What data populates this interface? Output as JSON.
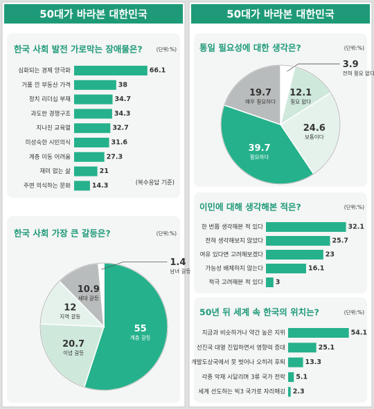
{
  "panels": [
    {
      "header": "50대가 바라본 대한민국"
    },
    {
      "header": "50대가 바라본 대한민국"
    }
  ],
  "chart_data": [
    {
      "type": "bar",
      "title": "한국 사회 발전 가로막는 장애물은?",
      "unit": "(단위:%)",
      "note": "(복수응답 기준)",
      "categories": [
        "심화되는 경제 양극화",
        "거품 낀 부동산 가격",
        "정치 리더십 부재",
        "과도한 경쟁구조",
        "지나친 교육열",
        "미성숙한 시민의식",
        "계층 이동 어려움",
        "재미 없는 삶",
        "주변 의식하는 문화"
      ],
      "values": [
        66.1,
        38,
        34.7,
        34.3,
        32.7,
        31.6,
        27.3,
        21,
        14.3
      ],
      "color": "#25b18b"
    },
    {
      "type": "pie",
      "title": "한국 사회 가장 큰 갈등은?",
      "unit": "(단위:%)",
      "categories": [
        "계층 갈등",
        "이념 갈등",
        "지역 갈등",
        "세대 갈등",
        "남녀 갈등"
      ],
      "values": [
        55,
        20.7,
        12,
        10.9,
        1.4
      ],
      "colors": [
        "#25b18b",
        "#cfe8dc",
        "#e4f2eb",
        "#b9bcbc",
        "#ffffff"
      ]
    },
    {
      "type": "pie",
      "title": "통일 필요성에 대한 생각은?",
      "unit": "(단위:%)",
      "categories": [
        "전혀 필요 없다",
        "필요 없다",
        "보통이다",
        "필요하다",
        "매우 필요하다"
      ],
      "values": [
        3.9,
        12.1,
        24.6,
        39.7,
        19.7
      ],
      "colors": [
        "#ffffff",
        "#cfe8dc",
        "#e4f2eb",
        "#25b18b",
        "#b9bcbc"
      ]
    },
    {
      "type": "bar",
      "title": "이민에 대해 생각해본 적은?",
      "unit": "(단위:%)",
      "categories": [
        "한 번쯤 생각해본 적 있다",
        "전혀 생각해보지 않았다",
        "여유 있다면 고려해보겠다",
        "가능성 배제하지 않는다",
        "적극 고려해본 적 있다"
      ],
      "values": [
        32.1,
        25.7,
        23,
        16.1,
        3
      ],
      "color": "#25b18b"
    },
    {
      "type": "bar",
      "title": "50년 뒤 세계 속 한국의 위치는?",
      "unit": "(단위:%)",
      "categories": [
        "지금과 비슷하거나 약간 높은 지위",
        "선진국 대열 진입하면서 영향력 증대",
        "개발도상국에서 못 벗어나 오히려 후퇴",
        "각종 악재 시달리며 3류 국가 전락",
        "세계 선도하는 빅3 국가로 자리매김"
      ],
      "values": [
        54.1,
        25.1,
        13.3,
        5.1,
        2.3
      ],
      "color": "#25b18b"
    }
  ]
}
